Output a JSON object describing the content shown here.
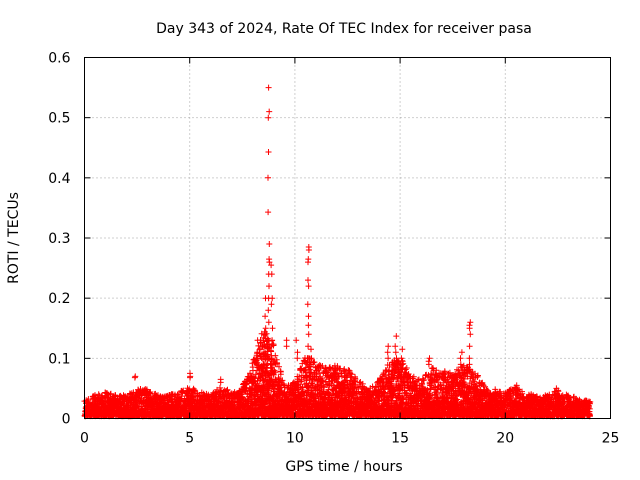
{
  "chart_data": {
    "type": "scatter",
    "title": "Day 343 of 2024, Rate Of TEC Index for receiver pasa",
    "xlabel": "GPS time / hours",
    "ylabel": "ROTI / TECUs",
    "xlim": [
      0,
      25
    ],
    "ylim": [
      0,
      0.6
    ],
    "x_ticks": [
      "0",
      "5",
      "10",
      "15",
      "20",
      "25"
    ],
    "y_ticks": [
      "0",
      "0.1",
      "0.2",
      "0.3",
      "0.4",
      "0.5",
      "0.6"
    ],
    "grid": true,
    "marker": "+",
    "color": "#ff0000",
    "envelope": {
      "description_hours": [
        0,
        0.5,
        1,
        1.5,
        2,
        2.5,
        3,
        3.5,
        4,
        4.5,
        5,
        5.5,
        6,
        6.5,
        7,
        7.5,
        8,
        8.5,
        9,
        9.5,
        10,
        10.5,
        11,
        11.5,
        12,
        12.5,
        13,
        13.5,
        14,
        14.5,
        15,
        15.5,
        16,
        16.5,
        17,
        17.5,
        18,
        18.5,
        19,
        19.5,
        20,
        20.5,
        21,
        21.5,
        22,
        22.5,
        23,
        23.5,
        24
      ],
      "upper": [
        0.025,
        0.035,
        0.04,
        0.035,
        0.035,
        0.045,
        0.045,
        0.035,
        0.035,
        0.04,
        0.05,
        0.04,
        0.035,
        0.05,
        0.04,
        0.05,
        0.09,
        0.15,
        0.12,
        0.05,
        0.06,
        0.1,
        0.09,
        0.08,
        0.085,
        0.08,
        0.06,
        0.045,
        0.06,
        0.09,
        0.1,
        0.07,
        0.06,
        0.08,
        0.08,
        0.07,
        0.09,
        0.08,
        0.05,
        0.045,
        0.04,
        0.05,
        0.04,
        0.035,
        0.035,
        0.045,
        0.035,
        0.03,
        0.025
      ]
    },
    "spikes": [
      {
        "x": 8.75,
        "y": [
          0.55,
          0.51,
          0.5,
          0.443,
          0.4,
          0.343,
          0.29,
          0.265,
          0.26,
          0.24,
          0.22,
          0.2,
          0.18,
          0.16
        ]
      },
      {
        "x": 8.9,
        "y": [
          0.255,
          0.24,
          0.2,
          0.19,
          0.15,
          0.13,
          0.12,
          0.1
        ]
      },
      {
        "x": 8.6,
        "y": [
          0.2,
          0.17,
          0.15,
          0.14,
          0.12,
          0.1
        ]
      },
      {
        "x": 8.2,
        "y": [
          0.13,
          0.11,
          0.1,
          0.09
        ]
      },
      {
        "x": 10.65,
        "y": [
          0.285,
          0.28,
          0.265,
          0.26,
          0.23,
          0.22,
          0.19,
          0.17,
          0.155,
          0.14,
          0.12,
          0.1
        ]
      },
      {
        "x": 10.8,
        "y": [
          0.115,
          0.1,
          0.09
        ]
      },
      {
        "x": 9.6,
        "y": [
          0.13,
          0.12
        ]
      },
      {
        "x": 10.1,
        "y": [
          0.13,
          0.11,
          0.1
        ]
      },
      {
        "x": 14.8,
        "y": [
          0.137,
          0.12,
          0.11,
          0.1,
          0.09
        ]
      },
      {
        "x": 14.4,
        "y": [
          0.12,
          0.11,
          0.1
        ]
      },
      {
        "x": 15.1,
        "y": [
          0.115,
          0.1,
          0.09
        ]
      },
      {
        "x": 16.4,
        "y": [
          0.1,
          0.095,
          0.09
        ]
      },
      {
        "x": 18.3,
        "y": [
          0.16,
          0.155,
          0.15,
          0.14,
          0.12,
          0.1,
          0.09
        ]
      },
      {
        "x": 17.9,
        "y": [
          0.11,
          0.1,
          0.09
        ]
      },
      {
        "x": 2.4,
        "y": [
          0.07,
          0.068
        ]
      },
      {
        "x": 5.05,
        "y": [
          0.075,
          0.07,
          0.068
        ]
      },
      {
        "x": 6.45,
        "y": [
          0.065,
          0.06
        ]
      },
      {
        "x": 20.5,
        "y": [
          0.055,
          0.05
        ]
      },
      {
        "x": 22.4,
        "y": [
          0.05,
          0.045
        ]
      }
    ]
  }
}
